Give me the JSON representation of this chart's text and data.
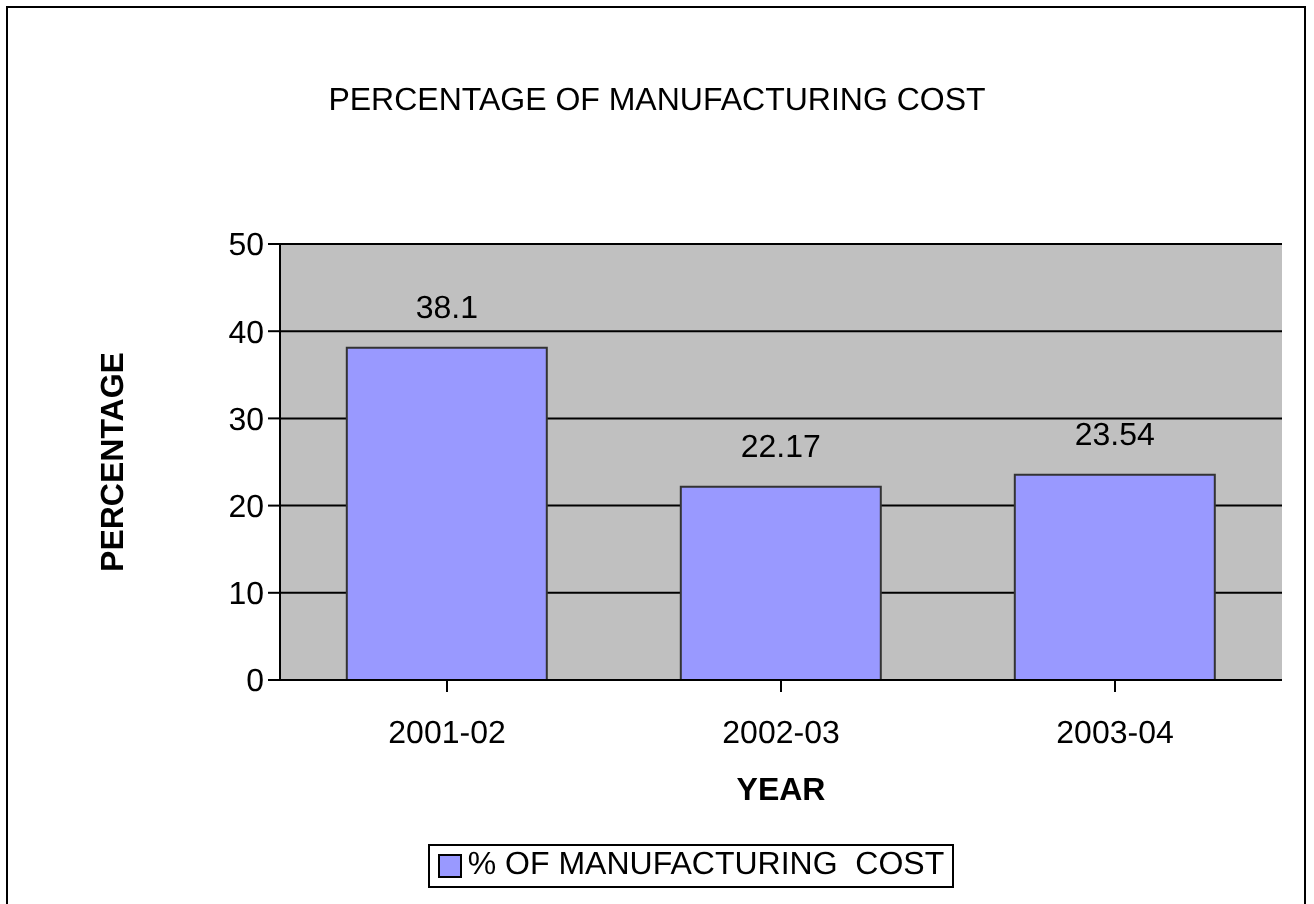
{
  "chart_data": {
    "type": "bar",
    "title": "PERCENTAGE OF MANUFACTURING COST",
    "xlabel": "YEAR",
    "ylabel": "PERCENTAGE",
    "categories": [
      "2001-02",
      "2002-03",
      "2003-04"
    ],
    "series": [
      {
        "name": "% OF MANUFACTURING  COST",
        "color": "#9999ff",
        "values": [
          38.1,
          22.17,
          23.54
        ]
      }
    ],
    "ylim": [
      0,
      50
    ],
    "yticks": [
      0,
      10,
      20,
      30,
      40,
      50
    ],
    "grid": "y",
    "legend": "bottom",
    "data_labels": true
  }
}
